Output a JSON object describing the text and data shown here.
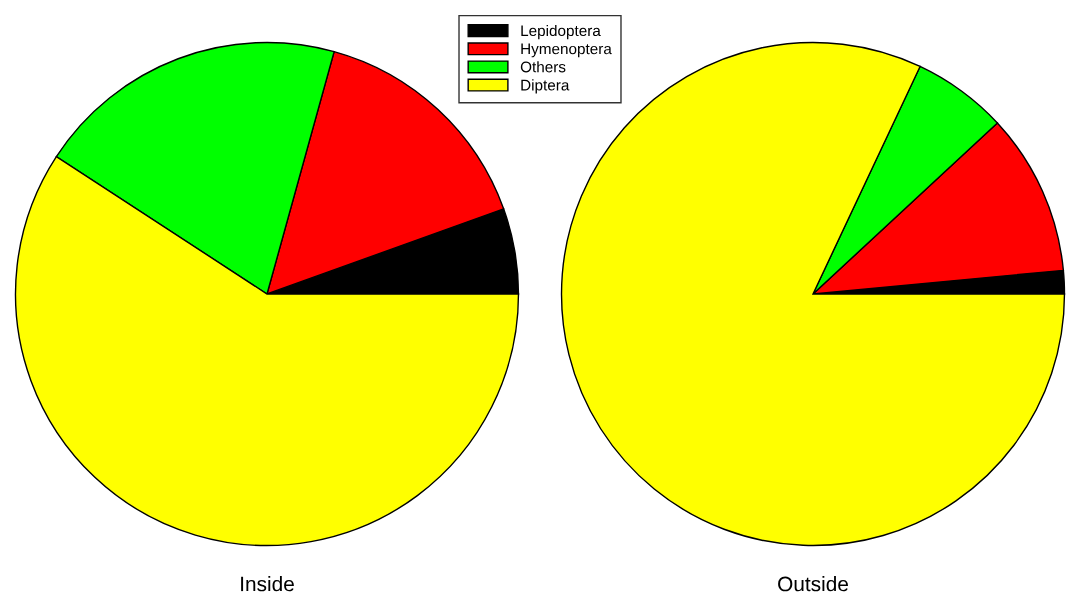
{
  "chart_data": [
    {
      "type": "pie",
      "title": "Inside",
      "categories": [
        "Lepidoptera",
        "Hymenoptera",
        "Others",
        "Diptera"
      ],
      "values": [
        5.5,
        15.2,
        20.1,
        59.2
      ],
      "colors": [
        "#000000",
        "#ff0000",
        "#00ff00",
        "#ffff00"
      ],
      "legend": "top right"
    },
    {
      "type": "pie",
      "title": "Outside",
      "categories": [
        null,
        null,
        null,
        null
      ],
      "values": [
        1.5,
        10.4,
        6.1,
        82.0
      ],
      "colors": [
        "#000000",
        "#ff0000",
        "#00ff00",
        "#ffff00"
      ]
    }
  ]
}
